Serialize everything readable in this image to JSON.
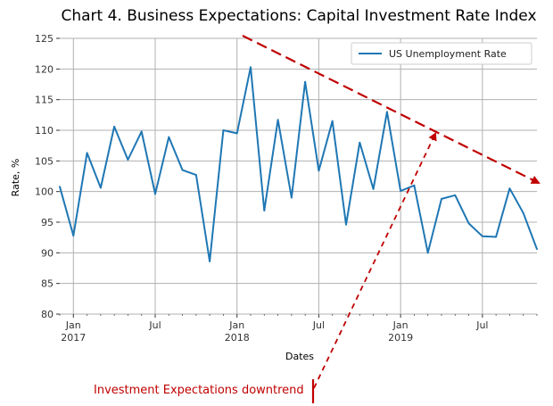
{
  "chart_data": {
    "type": "line",
    "title": "Chart 4. Business Expectations: Capital Investment Rate Index",
    "xlabel": "Dates",
    "ylabel": "Rate, %",
    "ylim": [
      80,
      125
    ],
    "yticks": [
      80,
      85,
      90,
      95,
      100,
      105,
      110,
      115,
      120,
      125
    ],
    "xlim": [
      "2016-12",
      "2019-11"
    ],
    "xticks": [
      {
        "month": "2017-01",
        "label": "Jan",
        "year": "2017"
      },
      {
        "month": "2017-07",
        "label": "Jul",
        "year": ""
      },
      {
        "month": "2018-01",
        "label": "Jan",
        "year": "2018"
      },
      {
        "month": "2018-07",
        "label": "Jul",
        "year": ""
      },
      {
        "month": "2019-01",
        "label": "Jan",
        "year": "2019"
      },
      {
        "month": "2019-07",
        "label": "Jul",
        "year": ""
      }
    ],
    "grid": true,
    "legend_position": "top-right",
    "series": [
      {
        "name": "US Unemployment Rate",
        "color": "#1f77b4",
        "x": [
          "2016-12",
          "2017-01",
          "2017-02",
          "2017-03",
          "2017-04",
          "2017-05",
          "2017-06",
          "2017-07",
          "2017-08",
          "2017-09",
          "2017-10",
          "2017-11",
          "2017-12",
          "2018-01",
          "2018-02",
          "2018-03",
          "2018-04",
          "2018-05",
          "2018-06",
          "2018-07",
          "2018-08",
          "2018-09",
          "2018-10",
          "2018-11",
          "2018-12",
          "2019-01",
          "2019-02",
          "2019-03",
          "2019-04",
          "2019-05",
          "2019-06",
          "2019-07",
          "2019-08",
          "2019-09",
          "2019-10",
          "2019-11"
        ],
        "y": [
          100.8,
          92.8,
          106.3,
          100.6,
          110.6,
          105.2,
          109.8,
          99.6,
          108.9,
          103.5,
          102.7,
          88.6,
          110.0,
          109.5,
          120.3,
          96.9,
          111.7,
          99.0,
          117.9,
          103.4,
          111.5,
          94.6,
          108.0,
          100.4,
          113.0,
          100.1,
          101.0,
          90.0,
          98.8,
          99.4,
          94.8,
          92.7,
          92.6,
          100.5,
          96.5,
          90.6
        ]
      }
    ],
    "annotations": [
      {
        "text": "Investment Expectations downtrend",
        "color": "#c00000"
      }
    ],
    "trend_line": {
      "color": "#c00000",
      "start": [
        "2018-01",
        125.5
      ],
      "end": [
        "2019-11",
        100.7
      ]
    }
  }
}
